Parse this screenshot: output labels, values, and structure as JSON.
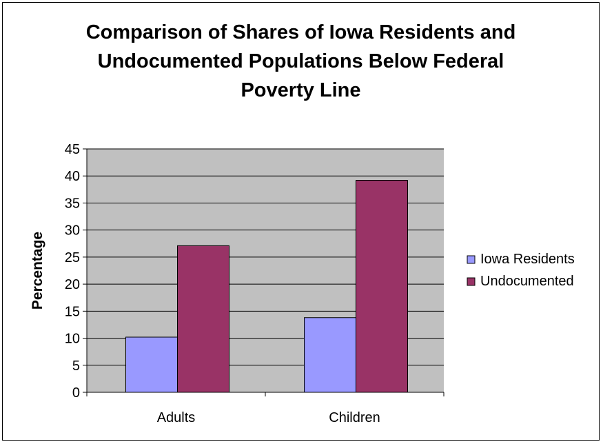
{
  "colors": {
    "plot_background": "#c0c0c0",
    "gridline": "#000000",
    "iowa_residents": "#9999ff",
    "undocumented": "#993366",
    "text": "#000000"
  },
  "chart_data": {
    "type": "bar",
    "title": "Comparison of Shares of Iowa Residents and\nUndocumented Populations Below Federal\nPoverty Line",
    "xlabel": "",
    "ylabel": "Percentage",
    "categories": [
      "Adults",
      "Children"
    ],
    "series": [
      {
        "name": "Iowa Residents",
        "values": [
          10.2,
          13.8
        ]
      },
      {
        "name": "Undocumented",
        "values": [
          27.1,
          39.2
        ]
      }
    ],
    "ylim": [
      0,
      45
    ],
    "yticks": [
      0,
      5,
      10,
      15,
      20,
      25,
      30,
      35,
      40,
      45
    ],
    "grid": true,
    "legend": "right"
  }
}
